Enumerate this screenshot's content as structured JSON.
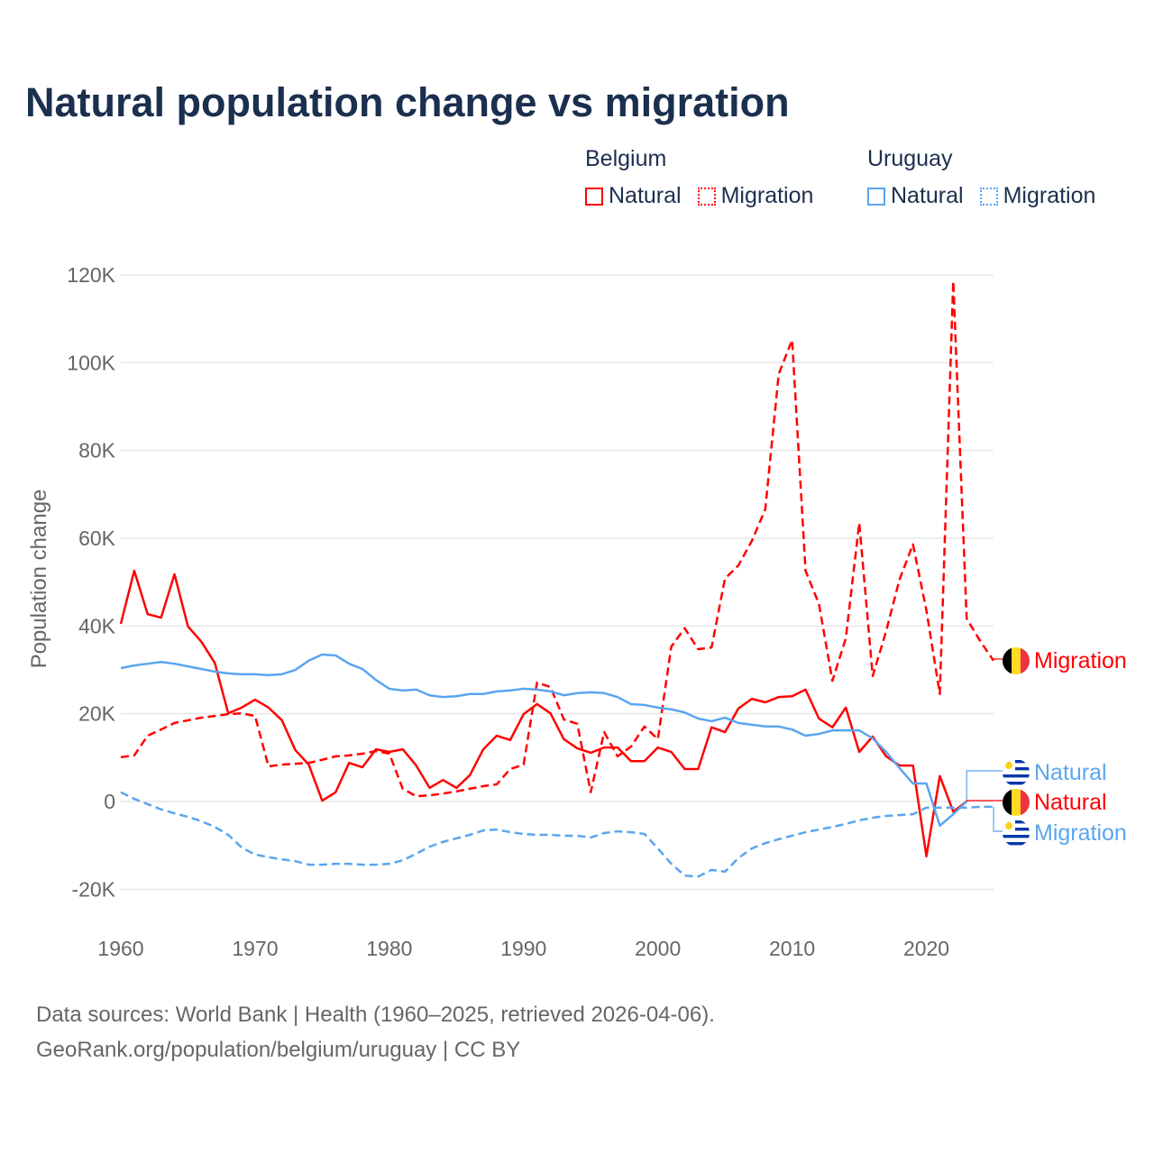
{
  "title": "Natural population change vs migration",
  "legend": {
    "groups": [
      {
        "name": "Belgium",
        "color": "#ff0000",
        "items": [
          "Natural",
          "Migration"
        ]
      },
      {
        "name": "Uruguay",
        "color": "#5aa5ee",
        "items": [
          "Natural",
          "Migration"
        ]
      }
    ]
  },
  "footer": {
    "line1": "Data sources: World Bank | Health (1960–2025, retrieved 2026-04-06).",
    "line2": "GeoRank.org/population/belgium/uruguay | CC BY"
  },
  "chart_data": {
    "type": "line",
    "title": "Natural population change vs migration",
    "xlabel": "",
    "ylabel": "Population change",
    "xlim": [
      1960,
      2025
    ],
    "ylim": [
      -28000,
      124000
    ],
    "x_ticks": [
      1960,
      1970,
      1980,
      1990,
      2000,
      2010,
      2020
    ],
    "y_ticks": [
      -20000,
      0,
      20000,
      40000,
      60000,
      80000,
      100000,
      120000
    ],
    "y_tick_labels": [
      "-20K",
      "0",
      "20K",
      "40K",
      "60K",
      "80K",
      "100K",
      "120K"
    ],
    "grid": true,
    "legend_position": "top-right",
    "series": [
      {
        "name": "Belgium Natural",
        "country": "Belgium",
        "kind": "Natural",
        "label": "Natural",
        "color": "#ff0000",
        "dashed": false,
        "start_year": 1960,
        "values": [
          40.5,
          52.6,
          42.7,
          41.9,
          51.8,
          39.9,
          36.4,
          31.6,
          20.1,
          21.4,
          23.2,
          21.4,
          18.5,
          11.7,
          8.4,
          0.2,
          2.1,
          8.8,
          7.8,
          11.9,
          11.3,
          11.9,
          8.2,
          3.1,
          4.9,
          3.1,
          6.0,
          11.9,
          15.0,
          14.0,
          19.9,
          22.2,
          20.1,
          14.2,
          12.1,
          11.1,
          12.3,
          12.3,
          9.2,
          9.2,
          12.3,
          11.3,
          7.4,
          7.4,
          16.9,
          15.8,
          21.2,
          23.4,
          22.6,
          23.8,
          24.0,
          25.5,
          18.9,
          16.9,
          21.4,
          11.3,
          14.8,
          10.3,
          8.2,
          8.2,
          -12.5,
          5.8,
          -2.3,
          0.0
        ]
      },
      {
        "name": "Belgium Migration",
        "country": "Belgium",
        "kind": "Migration",
        "label": "Migration",
        "color": "#ff0000",
        "dashed": true,
        "start_year": 1960,
        "values": [
          10.1,
          10.5,
          15.0,
          16.4,
          17.9,
          18.5,
          19.1,
          19.5,
          19.9,
          20.1,
          19.5,
          8.0,
          8.4,
          8.6,
          8.8,
          9.5,
          10.3,
          10.5,
          10.9,
          11.5,
          10.9,
          2.9,
          1.2,
          1.4,
          1.8,
          2.3,
          2.9,
          3.5,
          3.9,
          7.4,
          8.4,
          27.1,
          26.1,
          18.7,
          17.7,
          2.1,
          15.8,
          10.3,
          12.5,
          17.1,
          14.2,
          35.3,
          39.5,
          34.7,
          35.1,
          50.8,
          53.8,
          59.4,
          66.6,
          97.4,
          105.2,
          52.6,
          45.0,
          27.5,
          37.2,
          63.5,
          28.6,
          38.8,
          50.6,
          58.6,
          43.6,
          24.5,
          118.6,
          41.7,
          36.6,
          32.1
        ]
      },
      {
        "name": "Uruguay Natural",
        "country": "Uruguay",
        "kind": "Natural",
        "label": "Natural",
        "color": "#5aa5ee",
        "dashed": false,
        "start_year": 1960,
        "values": [
          30.4,
          31.0,
          31.4,
          31.8,
          31.4,
          30.8,
          30.2,
          29.6,
          29.2,
          29.0,
          29.0,
          28.8,
          29.0,
          30.0,
          32.1,
          33.5,
          33.3,
          31.4,
          30.2,
          27.7,
          25.7,
          25.3,
          25.5,
          24.2,
          23.8,
          24.0,
          24.5,
          24.5,
          25.1,
          25.3,
          25.7,
          25.5,
          25.1,
          24.2,
          24.7,
          24.9,
          24.7,
          23.8,
          22.2,
          22.0,
          21.4,
          21.0,
          20.3,
          18.9,
          18.3,
          19.1,
          17.9,
          17.5,
          17.1,
          17.1,
          16.4,
          15.0,
          15.4,
          16.2,
          16.2,
          16.2,
          14.4,
          11.3,
          7.6,
          4.1,
          4.1,
          -5.5,
          -2.9,
          0.0
        ]
      },
      {
        "name": "Uruguay Migration",
        "country": "Uruguay",
        "kind": "Migration",
        "label": "Migration",
        "color": "#5aa5ee",
        "dashed": true,
        "start_year": 1960,
        "values": [
          2.1,
          0.6,
          -0.6,
          -1.8,
          -2.7,
          -3.5,
          -4.5,
          -5.8,
          -7.6,
          -10.5,
          -12.1,
          -12.7,
          -13.2,
          -13.6,
          -14.4,
          -14.4,
          -14.2,
          -14.2,
          -14.4,
          -14.4,
          -14.2,
          -13.4,
          -11.9,
          -10.3,
          -9.2,
          -8.4,
          -7.6,
          -6.6,
          -6.4,
          -7.0,
          -7.4,
          -7.6,
          -7.6,
          -7.8,
          -7.8,
          -8.2,
          -7.2,
          -6.8,
          -7.0,
          -7.4,
          -10.7,
          -14.2,
          -16.9,
          -17.1,
          -15.6,
          -16.0,
          -12.9,
          -10.7,
          -9.5,
          -8.6,
          -7.8,
          -7.0,
          -6.4,
          -5.8,
          -5.1,
          -4.3,
          -3.7,
          -3.3,
          -3.1,
          -2.9,
          -1.4,
          -1.4,
          -1.4,
          -1.4,
          -1.2,
          -1.2
        ]
      }
    ],
    "value_unit": "thousands",
    "end_labels": [
      {
        "series": "Belgium Migration",
        "text": "Migration",
        "flag": "belgium-flag-icon"
      },
      {
        "series": "Uruguay Natural",
        "text": "Natural",
        "flag": "uruguay-flag-icon"
      },
      {
        "series": "Belgium Natural",
        "text": "Natural",
        "flag": "belgium-flag-icon"
      },
      {
        "series": "Uruguay Migration",
        "text": "Migration",
        "flag": "uruguay-flag-icon"
      }
    ]
  }
}
